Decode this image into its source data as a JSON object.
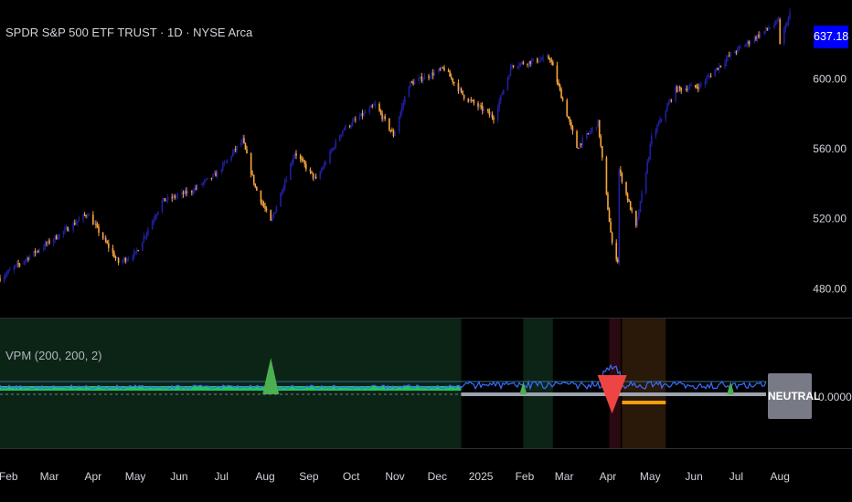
{
  "header": {
    "title": "SPDR S&P 500 ETF TRUST · 1D · NYSE Arca",
    "last_price": "637.18"
  },
  "indicator": {
    "title": "VPM (200, 200, 2)",
    "state_label": "NEUTRAL",
    "value_label": "0.0000"
  },
  "colors": {
    "background": "#000000",
    "candle_up": "#1f1f9e",
    "candle_down": "#f7a53b",
    "price_badge": "#0000ff",
    "bull_zone": "#0c2416",
    "green_line": "#22c55e",
    "blue_line": "#3b6cff",
    "red_signal": "#ef4444",
    "orange_zone": "#2a1808",
    "gray_line": "#9ca3af"
  },
  "chart_data": [
    {
      "type": "candlestick",
      "title": "SPDR S&P 500 ETF TRUST · 1D · NYSE Arca",
      "ylim": [
        465,
        640
      ],
      "y_ticks": [
        "600.00",
        "560.00",
        "520.00",
        "480.00"
      ],
      "y_tick_values": [
        600,
        560,
        520,
        480
      ],
      "x_ticks": [
        "Feb",
        "Mar",
        "Apr",
        "May",
        "Jun",
        "Jul",
        "Aug",
        "Sep",
        "Oct",
        "Nov",
        "Dec",
        "2025",
        "Feb",
        "Mar",
        "Apr",
        "May",
        "Jun",
        "Jul",
        "Aug"
      ],
      "last_close": 637.18,
      "close_path": [
        {
          "date": "2024-01-26",
          "close": 486
        },
        {
          "date": "2024-02-15",
          "close": 498
        },
        {
          "date": "2024-03-10",
          "close": 512
        },
        {
          "date": "2024-03-28",
          "close": 523
        },
        {
          "date": "2024-04-19",
          "close": 495
        },
        {
          "date": "2024-05-01",
          "close": 500
        },
        {
          "date": "2024-05-20",
          "close": 530
        },
        {
          "date": "2024-06-10",
          "close": 536
        },
        {
          "date": "2024-06-28",
          "close": 546
        },
        {
          "date": "2024-07-16",
          "close": 565
        },
        {
          "date": "2024-07-25",
          "close": 538
        },
        {
          "date": "2024-08-05",
          "close": 518
        },
        {
          "date": "2024-08-22",
          "close": 558
        },
        {
          "date": "2024-09-06",
          "close": 542
        },
        {
          "date": "2024-09-25",
          "close": 571
        },
        {
          "date": "2024-10-18",
          "close": 585
        },
        {
          "date": "2024-10-31",
          "close": 568
        },
        {
          "date": "2024-11-11",
          "close": 597
        },
        {
          "date": "2024-12-06",
          "close": 606
        },
        {
          "date": "2024-12-20",
          "close": 590
        },
        {
          "date": "2025-01-10",
          "close": 578
        },
        {
          "date": "2025-01-23",
          "close": 608
        },
        {
          "date": "2025-02-19",
          "close": 612
        },
        {
          "date": "2025-03-10",
          "close": 561
        },
        {
          "date": "2025-03-25",
          "close": 575
        },
        {
          "date": "2025-04-04",
          "close": 505
        },
        {
          "date": "2025-04-08",
          "close": 496
        },
        {
          "date": "2025-04-09",
          "close": 548
        },
        {
          "date": "2025-04-21",
          "close": 515
        },
        {
          "date": "2025-05-02",
          "close": 566
        },
        {
          "date": "2025-05-19",
          "close": 594
        },
        {
          "date": "2025-06-05",
          "close": 596
        },
        {
          "date": "2025-06-27",
          "close": 614
        },
        {
          "date": "2025-07-15",
          "close": 624
        },
        {
          "date": "2025-07-31",
          "close": 633
        },
        {
          "date": "2025-08-01",
          "close": 621
        },
        {
          "date": "2025-08-08",
          "close": 637.18
        }
      ]
    },
    {
      "type": "line",
      "title": "VPM (200, 200, 2)",
      "y_ticks": [
        "0.0000"
      ],
      "y_tick_values": [
        0
      ],
      "state": "NEUTRAL",
      "bull_regime": {
        "start": "2024-01-26",
        "end": "2024-12-18"
      },
      "bull_regime_2": {
        "start": "2025-01-31",
        "end": "2025-02-21"
      },
      "bear_regime": {
        "start": "2025-04-02",
        "end": "2025-04-10"
      },
      "orange_regime": {
        "start": "2025-04-11",
        "end": "2025-05-12"
      },
      "signals": [
        {
          "date": "2024-08-05",
          "type": "bullish"
        },
        {
          "date": "2025-01-31",
          "type": "bullish"
        },
        {
          "date": "2025-04-04",
          "type": "bearish"
        },
        {
          "date": "2025-06-27",
          "type": "bullish"
        }
      ]
    }
  ]
}
